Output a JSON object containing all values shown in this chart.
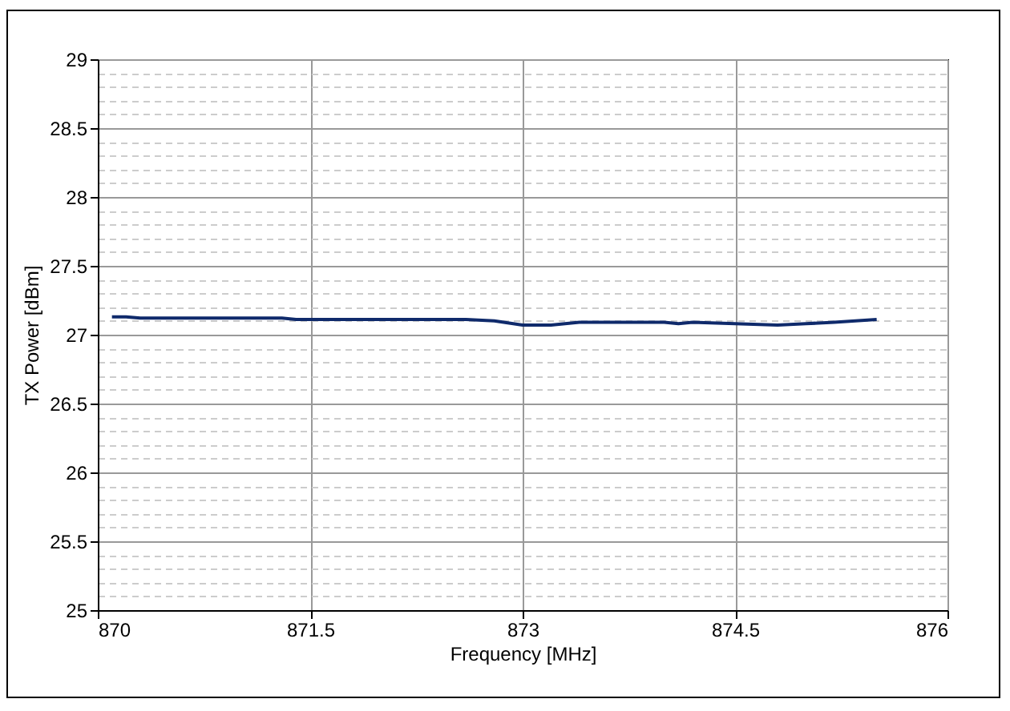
{
  "chart_data": {
    "type": "line",
    "xlabel": "Frequency  [MHz]",
    "ylabel": "TX Power [dBm]",
    "x": [
      870.1,
      870.2,
      870.3,
      870.5,
      870.8,
      871.1,
      871.3,
      871.4,
      871.8,
      872.2,
      872.6,
      872.8,
      873.0,
      873.2,
      873.4,
      873.7,
      874.0,
      874.1,
      874.2,
      874.5,
      874.8,
      875.0,
      875.2,
      875.5
    ],
    "series": [
      {
        "color": "#0f2a6b",
        "values": [
          27.13,
          27.13,
          27.12,
          27.12,
          27.12,
          27.12,
          27.12,
          27.11,
          27.11,
          27.11,
          27.11,
          27.1,
          27.07,
          27.07,
          27.09,
          27.09,
          27.09,
          27.08,
          27.09,
          27.08,
          27.07,
          27.08,
          27.09,
          27.11
        ]
      }
    ],
    "xlim": [
      870,
      876
    ],
    "xticks": [
      870,
      871.5,
      873,
      874.5,
      876
    ],
    "ylim": [
      25,
      29
    ],
    "yticks": [
      25,
      {
        "value": 25.1,
        "label": null
      },
      {
        "value": 25.2,
        "label": null
      },
      {
        "value": 25.3,
        "label": null
      },
      {
        "value": 25.4,
        "label": null
      },
      25.5,
      {
        "value": 25.6,
        "label": null
      },
      {
        "value": 25.7,
        "label": null
      },
      {
        "value": 25.8,
        "label": null
      },
      {
        "value": 25.9,
        "label": null
      },
      26,
      {
        "value": 26.1,
        "label": null
      },
      {
        "value": 26.2,
        "label": null
      },
      {
        "value": 26.3,
        "label": null
      },
      {
        "value": 26.4,
        "label": null
      },
      26.5,
      {
        "value": 26.6,
        "label": null
      },
      {
        "value": 26.7,
        "label": null
      },
      {
        "value": 26.8,
        "label": null
      },
      {
        "value": 26.9,
        "label": null
      },
      27,
      {
        "value": 27.1,
        "label": null
      },
      {
        "value": 27.2,
        "label": null
      },
      {
        "value": 27.3,
        "label": null
      },
      {
        "value": 27.4,
        "label": null
      },
      27.5,
      {
        "value": 27.6,
        "label": null
      },
      {
        "value": 27.7,
        "label": null
      },
      {
        "value": 27.8,
        "label": null
      },
      {
        "value": 27.9,
        "label": null
      },
      28,
      {
        "value": 28.1,
        "label": null
      },
      {
        "value": 28.2,
        "label": null
      },
      {
        "value": 28.3,
        "label": null
      },
      {
        "value": 28.4,
        "label": null
      },
      28.5,
      {
        "value": 28.6,
        "label": null
      },
      {
        "value": 28.7,
        "label": null
      },
      {
        "value": 28.8,
        "label": null
      },
      {
        "value": 28.9,
        "label": null
      },
      29
    ],
    "grid": true,
    "legend": false,
    "marker": "none",
    "line_style": "solid"
  }
}
